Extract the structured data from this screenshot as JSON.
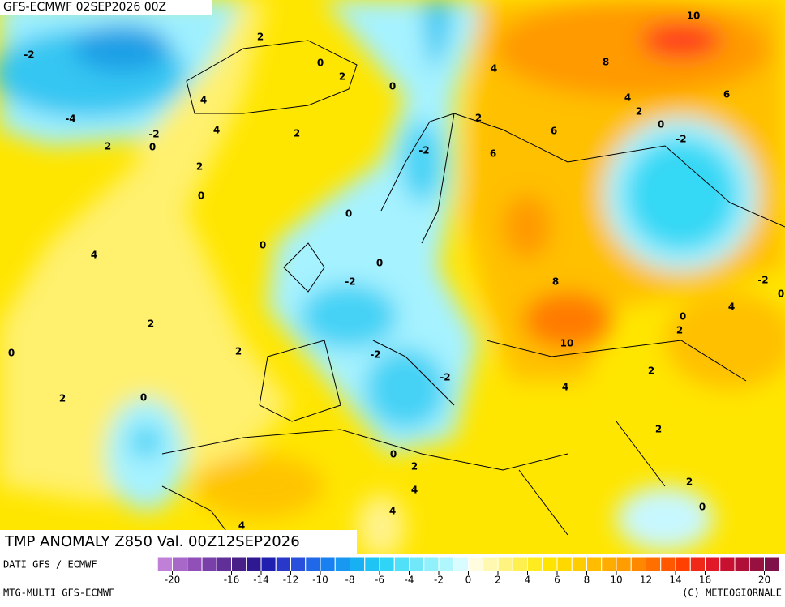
{
  "header": {
    "run": "GFS-ECMWF 02SEP2026 00Z",
    "title": "TMP ANOMALY Z850 Val. 00Z12SEP2026"
  },
  "footer": {
    "source": "DATI GFS / ECMWF",
    "model": "MTG-MULTI GFS-ECMWF",
    "copyright": "(C) METEOGIORNALE"
  },
  "colorbar_ticks": [
    -20,
    -16,
    -14,
    -12,
    -10,
    -8,
    -6,
    -4,
    -2,
    0,
    2,
    4,
    6,
    8,
    10,
    12,
    14,
    16,
    20
  ],
  "contour_labels": [
    10,
    8,
    6,
    4,
    2,
    0,
    -2,
    6,
    6,
    4,
    2,
    -2,
    0,
    2,
    0,
    2,
    -2,
    -4,
    -2,
    0,
    4,
    4,
    2,
    2,
    2,
    0,
    0,
    0,
    4,
    0,
    -2,
    8,
    -2,
    0,
    4,
    0,
    2,
    2,
    10,
    0,
    2,
    -2,
    -2,
    2,
    4,
    2,
    0,
    2,
    0,
    2,
    4,
    2,
    0,
    4,
    4
  ]
}
